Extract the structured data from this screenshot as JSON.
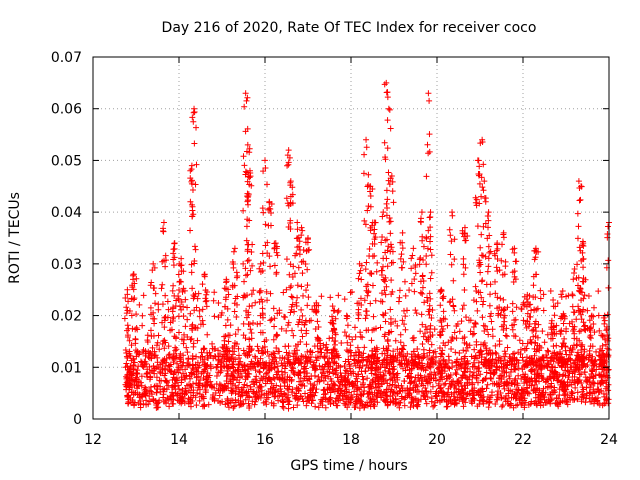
{
  "chart_data": {
    "type": "scatter",
    "title": "Day 216 of 2020, Rate Of TEC Index for receiver coco",
    "xlabel": "GPS time / hours",
    "ylabel": "ROTI / TECUs",
    "xlim": [
      12,
      24
    ],
    "ylim": [
      0,
      0.07
    ],
    "x_ticks": [
      "12",
      "14",
      "16",
      "18",
      "20",
      "22",
      "24"
    ],
    "y_ticks": [
      "0",
      "0.01",
      "0.02",
      "0.03",
      "0.04",
      "0.05",
      "0.06",
      "0.07"
    ],
    "grid": true,
    "marker": "+",
    "color": "#ff0000",
    "time_span": [
      12.75,
      24.0
    ],
    "background_level": [
      0.002,
      0.012
    ],
    "peaks": [
      {
        "x": 12.8,
        "y": 0.025
      },
      {
        "x": 12.95,
        "y": 0.028
      },
      {
        "x": 13.4,
        "y": 0.03
      },
      {
        "x": 13.65,
        "y": 0.038
      },
      {
        "x": 13.9,
        "y": 0.034
      },
      {
        "x": 14.05,
        "y": 0.031
      },
      {
        "x": 14.3,
        "y": 0.049
      },
      {
        "x": 14.35,
        "y": 0.06
      },
      {
        "x": 14.6,
        "y": 0.028
      },
      {
        "x": 15.1,
        "y": 0.027
      },
      {
        "x": 15.3,
        "y": 0.033
      },
      {
        "x": 15.55,
        "y": 0.063
      },
      {
        "x": 15.6,
        "y": 0.053
      },
      {
        "x": 15.65,
        "y": 0.048
      },
      {
        "x": 15.9,
        "y": 0.03
      },
      {
        "x": 16.0,
        "y": 0.05
      },
      {
        "x": 16.1,
        "y": 0.042
      },
      {
        "x": 16.25,
        "y": 0.034
      },
      {
        "x": 16.55,
        "y": 0.052
      },
      {
        "x": 16.6,
        "y": 0.046
      },
      {
        "x": 16.75,
        "y": 0.038
      },
      {
        "x": 16.85,
        "y": 0.037
      },
      {
        "x": 17.0,
        "y": 0.035
      },
      {
        "x": 17.2,
        "y": 0.022
      },
      {
        "x": 17.6,
        "y": 0.021
      },
      {
        "x": 17.9,
        "y": 0.02
      },
      {
        "x": 18.2,
        "y": 0.03
      },
      {
        "x": 18.35,
        "y": 0.054
      },
      {
        "x": 18.45,
        "y": 0.045
      },
      {
        "x": 18.55,
        "y": 0.038
      },
      {
        "x": 18.75,
        "y": 0.04
      },
      {
        "x": 18.82,
        "y": 0.065
      },
      {
        "x": 18.88,
        "y": 0.06
      },
      {
        "x": 18.95,
        "y": 0.047
      },
      {
        "x": 19.2,
        "y": 0.036
      },
      {
        "x": 19.45,
        "y": 0.033
      },
      {
        "x": 19.65,
        "y": 0.04
      },
      {
        "x": 19.8,
        "y": 0.063
      },
      {
        "x": 19.85,
        "y": 0.04
      },
      {
        "x": 20.1,
        "y": 0.025
      },
      {
        "x": 20.35,
        "y": 0.04
      },
      {
        "x": 20.65,
        "y": 0.037
      },
      {
        "x": 20.95,
        "y": 0.05
      },
      {
        "x": 21.05,
        "y": 0.054
      },
      {
        "x": 21.1,
        "y": 0.046
      },
      {
        "x": 21.2,
        "y": 0.04
      },
      {
        "x": 21.4,
        "y": 0.034
      },
      {
        "x": 21.55,
        "y": 0.036
      },
      {
        "x": 21.8,
        "y": 0.033
      },
      {
        "x": 22.1,
        "y": 0.024
      },
      {
        "x": 22.3,
        "y": 0.033
      },
      {
        "x": 22.7,
        "y": 0.023
      },
      {
        "x": 22.95,
        "y": 0.02
      },
      {
        "x": 23.2,
        "y": 0.029
      },
      {
        "x": 23.3,
        "y": 0.046
      },
      {
        "x": 23.35,
        "y": 0.045
      },
      {
        "x": 23.4,
        "y": 0.034
      },
      {
        "x": 23.6,
        "y": 0.02
      },
      {
        "x": 23.9,
        "y": 0.02
      },
      {
        "x": 24.0,
        "y": 0.038
      }
    ]
  }
}
